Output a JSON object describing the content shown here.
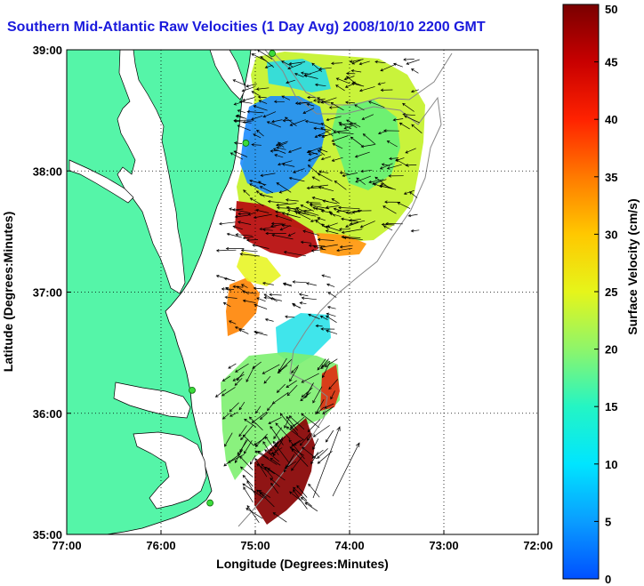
{
  "title": "Southern Mid-Atlantic Raw Velocities (1 Day Avg) 2008/10/10 2200 GMT",
  "map": {
    "xlabel": "Longitude (Degrees:Minutes)",
    "ylabel": "Latitude (Degrees:Minutes)",
    "lon_range": [
      -77,
      -72
    ],
    "lat_range": [
      35,
      39
    ],
    "x_ticks": [
      {
        "value": -77,
        "label": "77:00"
      },
      {
        "value": -76,
        "label": "76:00"
      },
      {
        "value": -75,
        "label": "75:00"
      },
      {
        "value": -74,
        "label": "74:00"
      },
      {
        "value": -73,
        "label": "73:00"
      },
      {
        "value": -72,
        "label": "72:00"
      }
    ],
    "y_ticks": [
      {
        "value": 39,
        "label": "39:00"
      },
      {
        "value": 38,
        "label": "38:00"
      },
      {
        "value": 37,
        "label": "37:00"
      },
      {
        "value": 36,
        "label": "36:00"
      },
      {
        "value": 35,
        "label": "35:00"
      }
    ],
    "grid": "dotted",
    "land_color": "#55f5a8",
    "ocean_color": "#ffffff",
    "stations": [
      {
        "lon": -74.82,
        "lat": 38.97
      },
      {
        "lon": -75.1,
        "lat": 38.23
      },
      {
        "lon": -75.67,
        "lat": 36.19
      },
      {
        "lon": -75.48,
        "lat": 35.26
      }
    ]
  },
  "colorbar": {
    "label": "Surface Velocity (cm/s)",
    "min": 0,
    "max": 50,
    "ticks": [
      {
        "value": 0,
        "label": "0"
      },
      {
        "value": 5,
        "label": "5"
      },
      {
        "value": 10,
        "label": "10"
      },
      {
        "value": 15,
        "label": "15"
      },
      {
        "value": 20,
        "label": "20"
      },
      {
        "value": 25,
        "label": "25"
      },
      {
        "value": 30,
        "label": "30"
      },
      {
        "value": 35,
        "label": "35"
      },
      {
        "value": 40,
        "label": "40"
      },
      {
        "value": 45,
        "label": "45"
      },
      {
        "value": 50,
        "label": "50"
      }
    ]
  },
  "chart_data": {
    "type": "heatmap",
    "title": "Southern Mid-Atlantic Raw Velocities (1 Day Avg) 2008/10/10 2200 GMT",
    "xlabel": "Longitude (Degrees:Minutes)",
    "ylabel": "Latitude (Degrees:Minutes)",
    "colorbar_label": "Surface Velocity (cm/s)",
    "xlim": [
      -77,
      -72
    ],
    "ylim": [
      35,
      39
    ],
    "clim": [
      0,
      50
    ],
    "regions": [
      {
        "lon": -74.2,
        "lat": 38.55,
        "speed": 22
      },
      {
        "lon": -74.85,
        "lat": 38.1,
        "speed": 8
      },
      {
        "lon": -74.75,
        "lat": 37.85,
        "speed": 12
      },
      {
        "lon": -74.6,
        "lat": 37.5,
        "speed": 44
      },
      {
        "lon": -74.1,
        "lat": 37.55,
        "speed": 32
      },
      {
        "lon": -73.45,
        "lat": 38.05,
        "speed": 24
      },
      {
        "lon": -75.05,
        "lat": 37.25,
        "speed": 26
      },
      {
        "lon": -75.2,
        "lat": 36.95,
        "speed": 35
      },
      {
        "lon": -74.55,
        "lat": 36.65,
        "speed": 14
      },
      {
        "lon": -74.75,
        "lat": 36.05,
        "speed": 18
      },
      {
        "lon": -74.5,
        "lat": 35.55,
        "speed": 48
      },
      {
        "lon": -74.3,
        "lat": 35.3,
        "speed": 49
      },
      {
        "lon": -74.3,
        "lat": 36.1,
        "speed": 35
      }
    ]
  }
}
